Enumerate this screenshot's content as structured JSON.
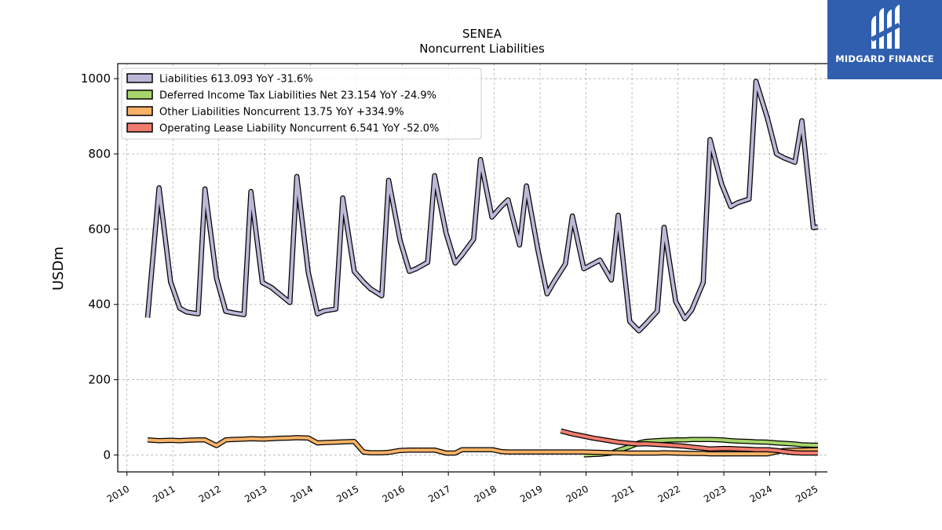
{
  "brand": {
    "name": "MIDGARD FINANCE",
    "bg_color": "#2f5fae"
  },
  "chart_data": {
    "type": "line",
    "title": "SENEA",
    "subtitle": "Noncurrent  Liabilities",
    "ylabel": "USDm",
    "xlabel": "",
    "xlim": [
      2009.8,
      2025.7
    ],
    "ylim": [
      -45,
      1040
    ],
    "yticks": [
      0,
      200,
      400,
      600,
      800,
      1000
    ],
    "xticks": [
      2010,
      2011,
      2012,
      2013,
      2014,
      2015,
      2016,
      2017,
      2018,
      2019,
      2020,
      2021,
      2022,
      2023,
      2024,
      2025
    ],
    "grid": true,
    "legend_position": "top-left",
    "series": [
      {
        "name": "Liabilities",
        "legend_label": "Liabilities  613.093 YoY -31.6%",
        "color": "#bcb8d8",
        "points": [
          [
            2010.45,
            365
          ],
          [
            2010.7,
            710
          ],
          [
            2010.95,
            460
          ],
          [
            2011.15,
            390
          ],
          [
            2011.3,
            380
          ],
          [
            2011.55,
            375
          ],
          [
            2011.7,
            707
          ],
          [
            2011.95,
            470
          ],
          [
            2012.15,
            382
          ],
          [
            2012.3,
            378
          ],
          [
            2012.55,
            373
          ],
          [
            2012.7,
            700
          ],
          [
            2012.95,
            458
          ],
          [
            2013.15,
            445
          ],
          [
            2013.3,
            430
          ],
          [
            2013.55,
            405
          ],
          [
            2013.7,
            740
          ],
          [
            2013.95,
            485
          ],
          [
            2014.15,
            375
          ],
          [
            2014.3,
            383
          ],
          [
            2014.55,
            388
          ],
          [
            2014.7,
            683
          ],
          [
            2014.95,
            488
          ],
          [
            2015.15,
            460
          ],
          [
            2015.3,
            442
          ],
          [
            2015.55,
            423
          ],
          [
            2015.7,
            730
          ],
          [
            2015.95,
            570
          ],
          [
            2016.15,
            488
          ],
          [
            2016.3,
            495
          ],
          [
            2016.55,
            512
          ],
          [
            2016.7,
            742
          ],
          [
            2016.95,
            590
          ],
          [
            2017.15,
            510
          ],
          [
            2017.3,
            532
          ],
          [
            2017.55,
            573
          ],
          [
            2017.7,
            785
          ],
          [
            2017.95,
            632
          ],
          [
            2018.15,
            660
          ],
          [
            2018.3,
            678
          ],
          [
            2018.55,
            558
          ],
          [
            2018.7,
            715
          ],
          [
            2018.95,
            545
          ],
          [
            2019.15,
            428
          ],
          [
            2019.3,
            460
          ],
          [
            2019.55,
            508
          ],
          [
            2019.7,
            635
          ],
          [
            2019.95,
            495
          ],
          [
            2020.15,
            508
          ],
          [
            2020.3,
            518
          ],
          [
            2020.55,
            465
          ],
          [
            2020.7,
            637
          ],
          [
            2020.95,
            355
          ],
          [
            2021.15,
            330
          ],
          [
            2021.3,
            348
          ],
          [
            2021.55,
            382
          ],
          [
            2021.7,
            605
          ],
          [
            2021.95,
            408
          ],
          [
            2022.15,
            362
          ],
          [
            2022.3,
            385
          ],
          [
            2022.55,
            458
          ],
          [
            2022.7,
            838
          ],
          [
            2022.95,
            720
          ],
          [
            2023.15,
            660
          ],
          [
            2023.3,
            670
          ],
          [
            2023.55,
            680
          ],
          [
            2023.7,
            993
          ],
          [
            2023.95,
            895
          ],
          [
            2024.15,
            800
          ],
          [
            2024.3,
            790
          ],
          [
            2024.55,
            778
          ],
          [
            2024.7,
            888
          ],
          [
            2024.95,
            604
          ],
          [
            2025.05,
            606
          ]
        ]
      },
      {
        "name": "Deferred Income Tax Liabilities Net",
        "legend_label": "Deferred Income Tax Liabilities Net  23.154 YoY -24.9%",
        "color": "#a6d56b",
        "points": [
          [
            2019.95,
            0
          ],
          [
            2020.3,
            2
          ],
          [
            2020.55,
            5
          ],
          [
            2020.7,
            12
          ],
          [
            2020.95,
            22
          ],
          [
            2021.15,
            32
          ],
          [
            2021.3,
            36
          ],
          [
            2021.55,
            38
          ],
          [
            2021.7,
            39
          ],
          [
            2021.95,
            40
          ],
          [
            2022.15,
            40
          ],
          [
            2022.3,
            41
          ],
          [
            2022.55,
            41
          ],
          [
            2022.7,
            41
          ],
          [
            2022.95,
            40
          ],
          [
            2023.15,
            38
          ],
          [
            2023.3,
            37
          ],
          [
            2023.55,
            36
          ],
          [
            2023.7,
            35
          ],
          [
            2023.95,
            34
          ],
          [
            2024.15,
            32
          ],
          [
            2024.3,
            31
          ],
          [
            2024.55,
            29
          ],
          [
            2024.7,
            27
          ],
          [
            2024.95,
            26
          ],
          [
            2025.05,
            26
          ]
        ]
      },
      {
        "name": "Other Liabilities Noncurrent",
        "legend_label": "Other Liabilities Noncurrent  13.75 YoY +334.9%",
        "color": "#f7b267",
        "points": [
          [
            2010.45,
            40
          ],
          [
            2010.7,
            38
          ],
          [
            2010.95,
            39
          ],
          [
            2011.15,
            38
          ],
          [
            2011.3,
            39
          ],
          [
            2011.55,
            40
          ],
          [
            2011.7,
            40
          ],
          [
            2011.95,
            25
          ],
          [
            2012.15,
            40
          ],
          [
            2012.3,
            41
          ],
          [
            2012.55,
            42
          ],
          [
            2012.7,
            43
          ],
          [
            2012.95,
            42
          ],
          [
            2013.15,
            43
          ],
          [
            2013.3,
            44
          ],
          [
            2013.55,
            45
          ],
          [
            2013.7,
            46
          ],
          [
            2013.95,
            45
          ],
          [
            2014.15,
            32
          ],
          [
            2014.3,
            33
          ],
          [
            2014.55,
            34
          ],
          [
            2014.7,
            35
          ],
          [
            2014.95,
            36
          ],
          [
            2015.15,
            8
          ],
          [
            2015.3,
            6
          ],
          [
            2015.55,
            6
          ],
          [
            2015.7,
            7
          ],
          [
            2015.95,
            12
          ],
          [
            2016.15,
            13
          ],
          [
            2016.3,
            13
          ],
          [
            2016.55,
            13
          ],
          [
            2016.7,
            13
          ],
          [
            2016.95,
            5
          ],
          [
            2017.15,
            5
          ],
          [
            2017.3,
            14
          ],
          [
            2017.55,
            14
          ],
          [
            2017.7,
            14
          ],
          [
            2017.95,
            14
          ],
          [
            2018.15,
            9
          ],
          [
            2018.3,
            8
          ],
          [
            2018.55,
            8
          ],
          [
            2018.7,
            8
          ],
          [
            2018.95,
            8
          ],
          [
            2019.15,
            8
          ],
          [
            2019.3,
            8
          ],
          [
            2019.55,
            8
          ],
          [
            2019.7,
            8
          ],
          [
            2019.95,
            8
          ],
          [
            2020.3,
            7
          ],
          [
            2020.55,
            6
          ],
          [
            2020.7,
            6
          ],
          [
            2020.95,
            5
          ],
          [
            2021.3,
            5
          ],
          [
            2021.55,
            5
          ],
          [
            2021.7,
            6
          ],
          [
            2021.95,
            5
          ],
          [
            2022.3,
            4
          ],
          [
            2022.55,
            4
          ],
          [
            2022.7,
            3
          ],
          [
            2022.95,
            3
          ],
          [
            2023.3,
            3
          ],
          [
            2023.55,
            3
          ],
          [
            2023.95,
            3
          ],
          [
            2024.3,
            12
          ],
          [
            2024.55,
            13
          ],
          [
            2024.7,
            13
          ],
          [
            2025.05,
            14
          ]
        ]
      },
      {
        "name": "Operating Lease Liability Noncurrent",
        "legend_label": "Operating Lease Liability Noncurrent  6.541 YoY -52.0%",
        "color": "#f17c6e",
        "points": [
          [
            2019.45,
            64
          ],
          [
            2019.7,
            56
          ],
          [
            2019.95,
            50
          ],
          [
            2020.15,
            45
          ],
          [
            2020.3,
            42
          ],
          [
            2020.55,
            37
          ],
          [
            2020.7,
            34
          ],
          [
            2020.95,
            31
          ],
          [
            2021.15,
            29
          ],
          [
            2021.3,
            30
          ],
          [
            2021.55,
            28
          ],
          [
            2021.7,
            27
          ],
          [
            2021.95,
            25
          ],
          [
            2022.15,
            23
          ],
          [
            2022.3,
            21
          ],
          [
            2022.55,
            18
          ],
          [
            2022.7,
            16
          ],
          [
            2022.95,
            17
          ],
          [
            2023.15,
            17
          ],
          [
            2023.3,
            16
          ],
          [
            2023.55,
            15
          ],
          [
            2023.7,
            14
          ],
          [
            2023.95,
            14
          ],
          [
            2024.15,
            12
          ],
          [
            2024.3,
            9
          ],
          [
            2024.55,
            6
          ],
          [
            2024.7,
            5
          ],
          [
            2024.95,
            5
          ],
          [
            2025.05,
            5
          ]
        ]
      }
    ]
  }
}
